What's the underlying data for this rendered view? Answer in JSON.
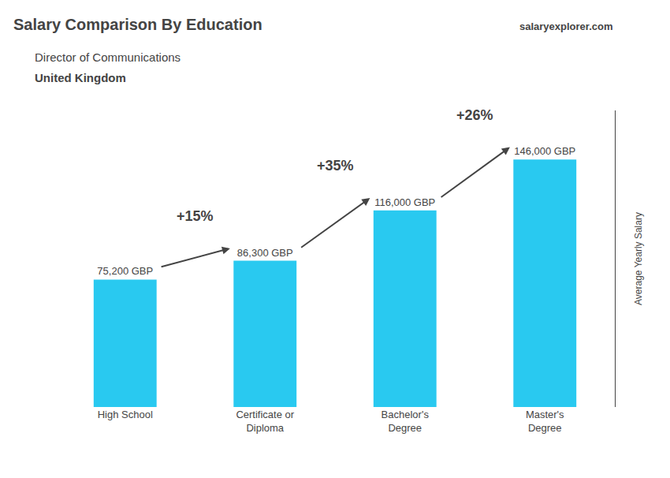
{
  "chart_data": {
    "type": "bar",
    "title": "Salary Comparison By Education",
    "subtitle": "Director of Communications",
    "annotations": [
      "United Kingdom",
      "salaryexplorer.com"
    ],
    "categories": [
      "High School",
      "Certificate or\nDiploma",
      "Bachelor's\nDegree",
      "Master's\nDegree"
    ],
    "values": [
      75200,
      86300,
      116000,
      146000
    ],
    "value_labels": [
      "75,200 GBP",
      "86,300 GBP",
      "116,000 GBP",
      "146,000 GBP"
    ],
    "data_labels": true,
    "change_labels": [
      "+15%",
      "+35%",
      "+26%"
    ],
    "color": "#29c9f0",
    "ylabel": "Average Yearly Salary",
    "ylim": [
      0,
      175000
    ],
    "grid": false,
    "tick_labels": "x"
  }
}
